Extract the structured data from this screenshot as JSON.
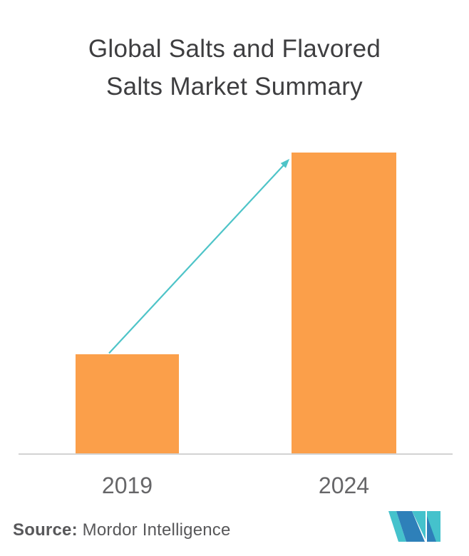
{
  "title": {
    "line1": "Global Salts and Flavored",
    "line2": "Salts Market Summary"
  },
  "chart_data": {
    "type": "bar",
    "title": "Global Salts and Flavored Salts Market Summary",
    "categories": [
      "2019",
      "2024"
    ],
    "values": [
      0.33,
      1.0
    ],
    "value_axis": "unlabeled (relative heights; 2024 bar is ~3x the 2019 bar)",
    "xlabel": "",
    "ylabel": "",
    "grid": false,
    "legend": false,
    "bar_color": "#FB9F4A",
    "axis_line_color": "#D3D3D3",
    "annotations": [
      {
        "type": "arrow",
        "from": "top of 2019 bar",
        "to": "top of 2024 bar",
        "color": "#4EC4C8"
      }
    ]
  },
  "footer": {
    "source_label": "Source:",
    "source_value": "Mordor Intelligence",
    "logo": {
      "teal": "#45C2CC",
      "blue": "#2E80B9"
    }
  }
}
